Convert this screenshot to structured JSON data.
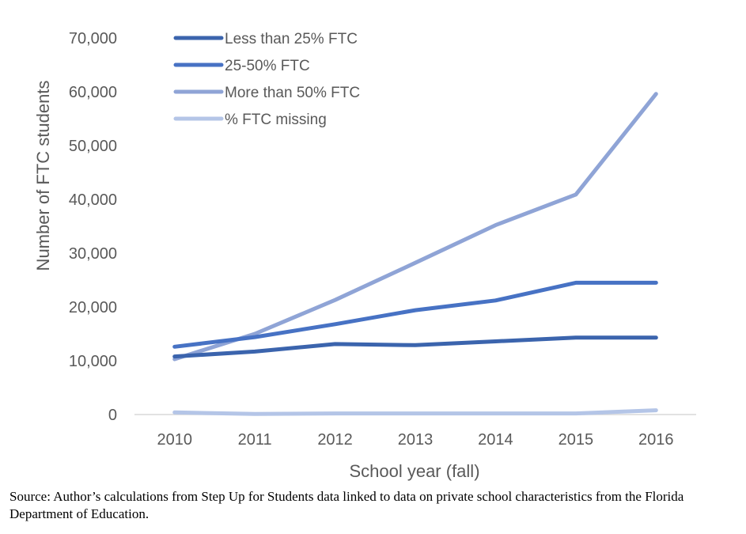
{
  "chart_data": {
    "type": "line",
    "title": "",
    "xlabel": "School year (fall)",
    "ylabel": "Number of FTC students",
    "x": [
      "2010",
      "2011",
      "2012",
      "2013",
      "2014",
      "2015",
      "2016"
    ],
    "ylim": [
      0,
      70000
    ],
    "yticks": [
      "0",
      "10,000",
      "20,000",
      "30,000",
      "40,000",
      "50,000",
      "60,000",
      "70,000"
    ],
    "grid": false,
    "legend_position": "top-left",
    "series": [
      {
        "name": "Less than 25% FTC",
        "color": "#3b64ad",
        "values": [
          10800,
          11700,
          13100,
          12900,
          13600,
          14300,
          14300
        ]
      },
      {
        "name": "25-50% FTC",
        "color": "#4772c4",
        "values": [
          12600,
          14400,
          16800,
          19400,
          21200,
          24500,
          24500
        ]
      },
      {
        "name": "More than 50% FTC",
        "color": "#8fa4d6",
        "values": [
          10300,
          15000,
          21300,
          28200,
          35200,
          40900,
          59600
        ]
      },
      {
        "name": "% FTC missing",
        "color": "#b4c5e7",
        "values": [
          400,
          100,
          200,
          200,
          200,
          200,
          800
        ]
      }
    ]
  },
  "source_note": "Source: Author’s calculations from Step Up for Students data linked to data on private school characteristics from the Florida Department of Education."
}
